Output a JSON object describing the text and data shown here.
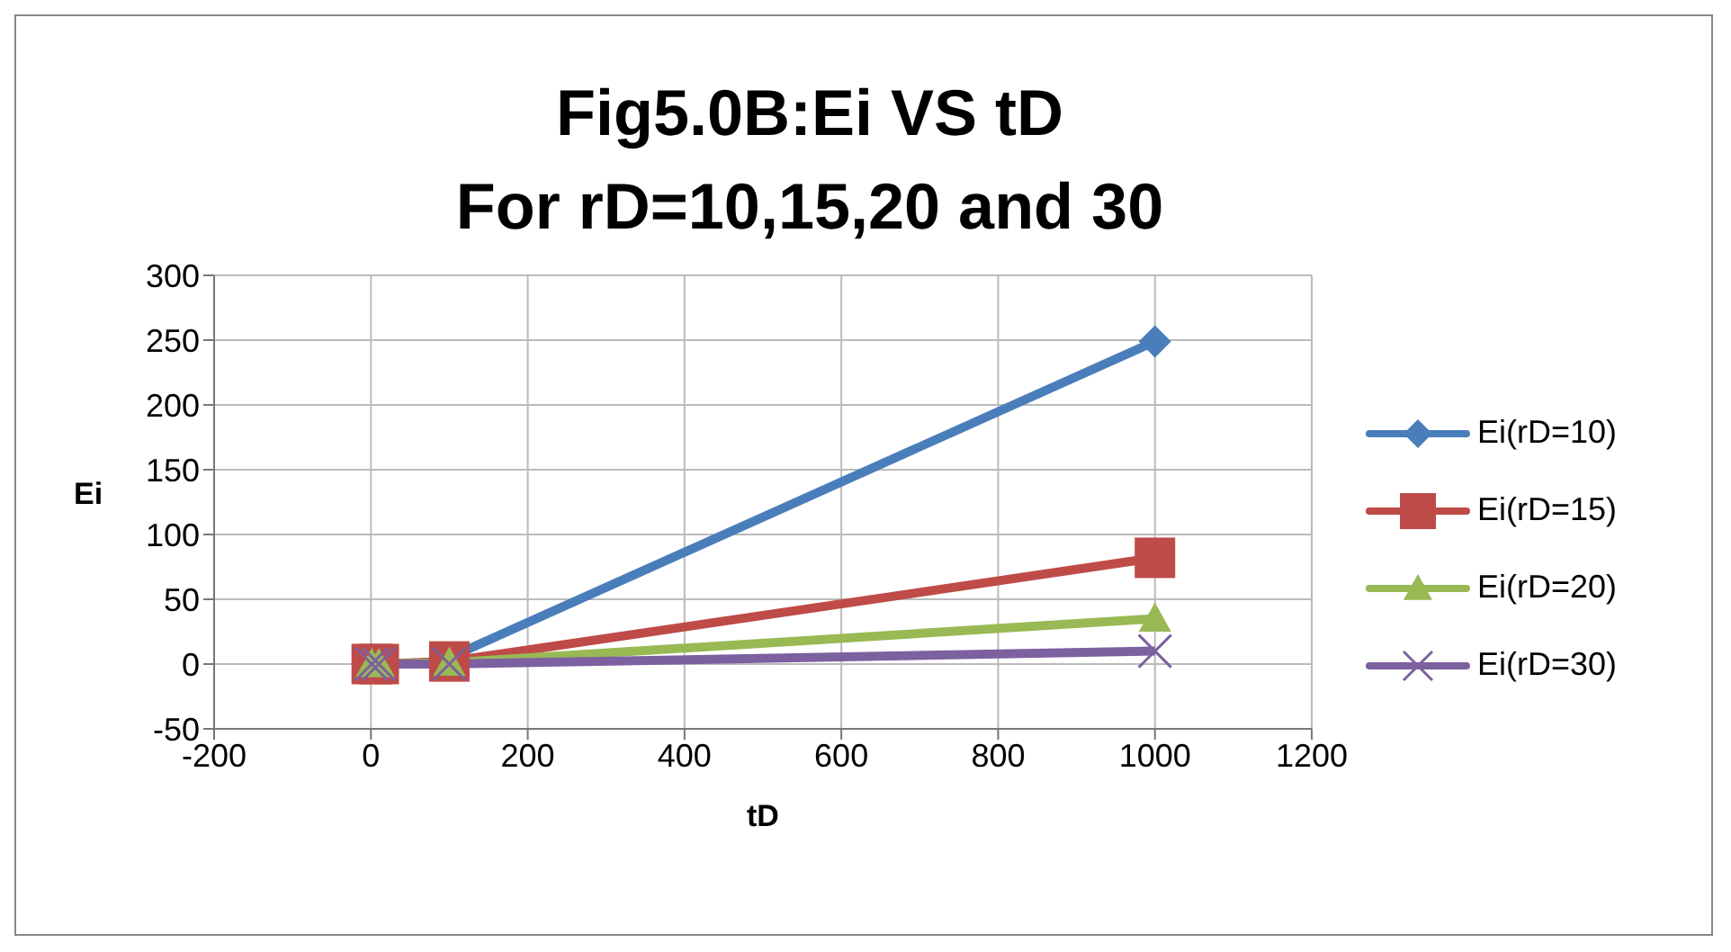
{
  "chart_data": {
    "type": "line",
    "title": "Fig5.0B:Ei VS tD",
    "subtitle": "For rD=10,15,20 and 30",
    "xlabel": "tD",
    "ylabel": "Ei",
    "x": [
      1,
      10,
      100,
      1000
    ],
    "series": [
      {
        "name": "Ei(rD=10)",
        "color": "#4a7ebb",
        "values": [
          null,
          null,
          5,
          249
        ],
        "marker": "diamond"
      },
      {
        "name": "Ei(rD=15)",
        "color": "#be4b48",
        "values": [
          0,
          0,
          2,
          82
        ],
        "marker": "square"
      },
      {
        "name": "Ei(rD=20)",
        "color": "#98b954",
        "values": [
          0,
          0,
          1,
          35
        ],
        "marker": "triangle"
      },
      {
        "name": "Ei(rD=30)",
        "color": "#7d60a0",
        "values": [
          0,
          0,
          0,
          10
        ],
        "marker": "cross"
      }
    ],
    "xlim": [
      -200,
      1200
    ],
    "xticks": [
      -200,
      0,
      200,
      400,
      600,
      800,
      1000,
      1200
    ],
    "ylim": [
      -50,
      300
    ],
    "yticks": [
      -50,
      0,
      50,
      100,
      150,
      200,
      250,
      300
    ],
    "grid": true,
    "legend": "right",
    "line_style": "solid"
  }
}
